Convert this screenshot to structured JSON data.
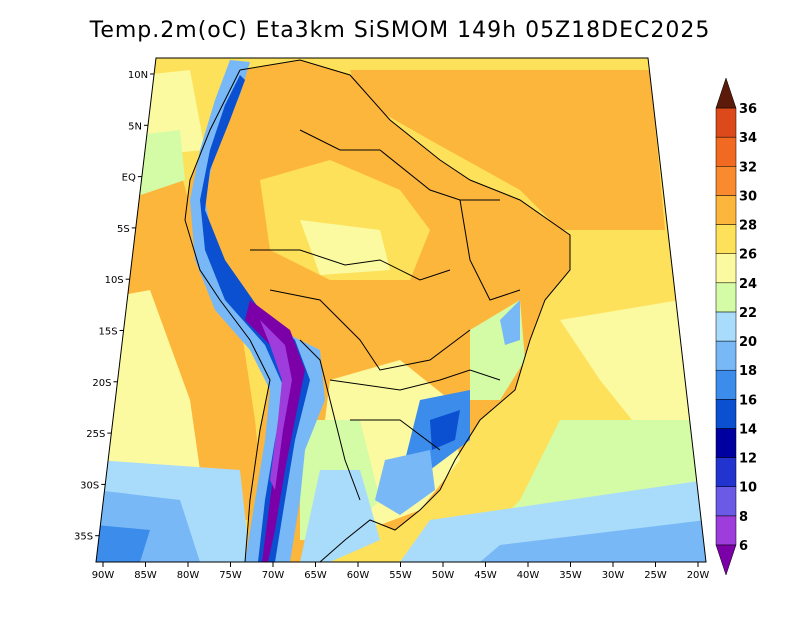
{
  "title": "Temp.2m(oC) Eta3km SiSMOM 149h 05Z18DEC2025",
  "lat_labels": [
    "10N",
    "5N",
    "EQ",
    "5S",
    "10S",
    "15S",
    "20S",
    "25S",
    "30S",
    "35S"
  ],
  "lon_labels": [
    "90W",
    "85W",
    "80W",
    "75W",
    "70W",
    "65W",
    "60W",
    "55W",
    "50W",
    "45W",
    "40W",
    "35W",
    "30W",
    "25W",
    "20W"
  ],
  "colorbar": {
    "labels": [
      "6",
      "8",
      "10",
      "12",
      "14",
      "16",
      "18",
      "20",
      "22",
      "24",
      "26",
      "28",
      "30",
      "32",
      "34",
      "36"
    ],
    "colors": [
      "#7b00a8",
      "#9f3ddc",
      "#6a5ae6",
      "#2233d0",
      "#0000a0",
      "#0a50d0",
      "#3c8ceb",
      "#78b8f6",
      "#a9dcfa",
      "#d4fba6",
      "#fcfaa0",
      "#fde15a",
      "#fdb63c",
      "#f98b2e",
      "#f26a22",
      "#dc4a1c",
      "#b0421a",
      "#8a2a14",
      "#5c1a0a"
    ]
  }
}
